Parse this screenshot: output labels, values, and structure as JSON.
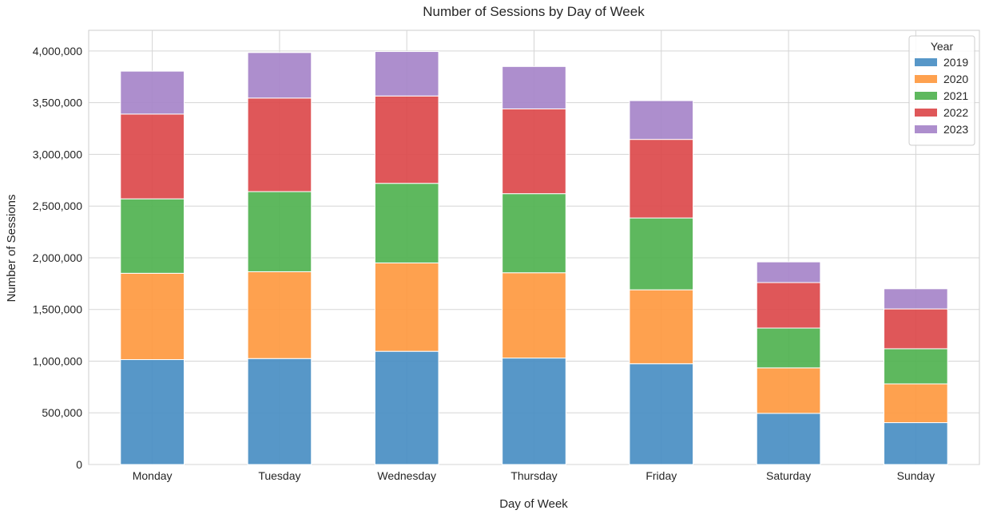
{
  "chart_data": {
    "type": "bar",
    "stacked": true,
    "title": "Number of Sessions by Day of Week",
    "xlabel": "Day of Week",
    "ylabel": "Number of Sessions",
    "ylim": [
      0,
      4200000
    ],
    "yticks": [
      0,
      500000,
      1000000,
      1500000,
      2000000,
      2500000,
      3000000,
      3500000,
      4000000
    ],
    "ytick_labels": [
      "0",
      "500,000",
      "1,000,000",
      "1,500,000",
      "2,000,000",
      "2,500,000",
      "3,000,000",
      "3,500,000",
      "4,000,000"
    ],
    "grid": true,
    "legend_title": "Year",
    "legend_position": "top-right",
    "categories": [
      "Monday",
      "Tuesday",
      "Wednesday",
      "Thursday",
      "Friday",
      "Saturday",
      "Sunday"
    ],
    "series": [
      {
        "name": "2019",
        "color": "#4a8fc4",
        "values": [
          1015000,
          1025000,
          1095000,
          1030000,
          975000,
          495000,
          405000
        ]
      },
      {
        "name": "2020",
        "color": "#fe9a42",
        "values": [
          835000,
          840000,
          855000,
          825000,
          715000,
          440000,
          375000
        ]
      },
      {
        "name": "2021",
        "color": "#52b352",
        "values": [
          720000,
          775000,
          770000,
          765000,
          695000,
          385000,
          340000
        ]
      },
      {
        "name": "2022",
        "color": "#dd4a4c",
        "values": [
          820000,
          905000,
          845000,
          820000,
          760000,
          440000,
          385000
        ]
      },
      {
        "name": "2023",
        "color": "#a785c9",
        "values": [
          415000,
          440000,
          430000,
          410000,
          375000,
          200000,
          195000
        ]
      }
    ]
  }
}
